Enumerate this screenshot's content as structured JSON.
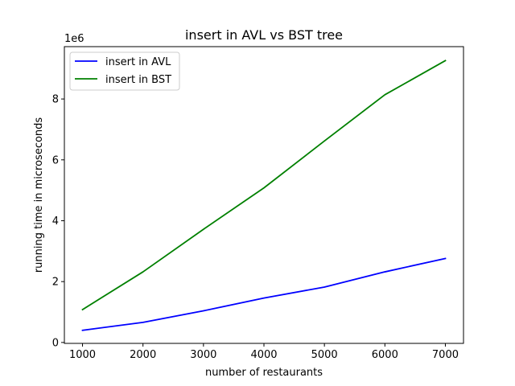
{
  "chart_data": {
    "type": "line",
    "title": "insert in AVL vs BST tree",
    "xlabel": "number of restaurants",
    "ylabel": "running time in microseconds",
    "y_offset_label": "1e6",
    "x": [
      1000,
      2000,
      3000,
      4000,
      5000,
      6000,
      7000
    ],
    "xlim": [
      700,
      7300
    ],
    "ylim": [
      -0.03,
      9.72
    ],
    "y_scale_factor": 1000000,
    "xticks": [
      1000,
      2000,
      3000,
      4000,
      5000,
      6000,
      7000
    ],
    "yticks": [
      0,
      2,
      4,
      6,
      8
    ],
    "grid": false,
    "legend_position": "upper-left",
    "series": [
      {
        "name": "insert in AVL",
        "color": "#0000ff",
        "values": [
          0.4,
          0.66,
          1.04,
          1.46,
          1.82,
          2.32,
          2.76
        ]
      },
      {
        "name": "insert in BST",
        "color": "#008000",
        "values": [
          1.08,
          2.32,
          3.72,
          5.08,
          6.62,
          8.14,
          9.26
        ]
      }
    ]
  }
}
